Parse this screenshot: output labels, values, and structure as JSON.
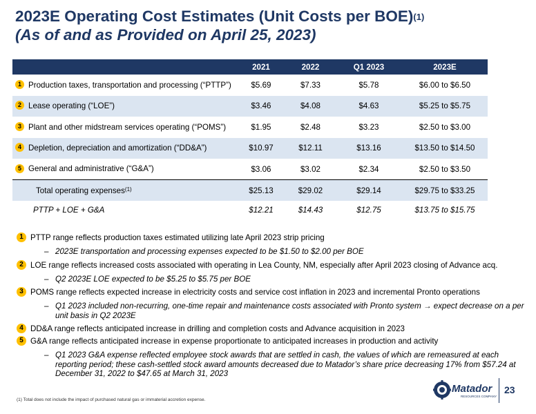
{
  "title": {
    "line1": "2023E Operating Cost Estimates (Unit Costs per BOE)",
    "line1_sup": "(1)",
    "line2": "(As of and as Provided on April 25, 2023)"
  },
  "table": {
    "headers": [
      "",
      "2021",
      "2022",
      "Q1 2023",
      "2023E"
    ],
    "rows": [
      {
        "num": "1",
        "label": "Production taxes, transportation and processing (“PTTP”)",
        "values": [
          "$5.69",
          "$7.33",
          "$5.78",
          "$6.00 to $6.50"
        ]
      },
      {
        "num": "2",
        "label": "Lease operating (“LOE”)",
        "values": [
          "$3.46",
          "$4.08",
          "$4.63",
          "$5.25 to $5.75"
        ]
      },
      {
        "num": "3",
        "label": "Plant and other midstream services operating (“POMS”)",
        "values": [
          "$1.95",
          "$2.48",
          "$3.23",
          "$2.50 to $3.00"
        ]
      },
      {
        "num": "4",
        "label": "Depletion, depreciation and amortization (“DD&A”)",
        "values": [
          "$10.97",
          "$12.11",
          "$13.16",
          "$13.50 to $14.50"
        ]
      },
      {
        "num": "5",
        "label": "General and administrative (“G&A”)",
        "values": [
          "$3.06",
          "$3.02",
          "$2.34",
          "$2.50 to $3.50"
        ]
      }
    ],
    "total": {
      "label": "Total operating expenses",
      "sup": "(1)",
      "values": [
        "$25.13",
        "$29.02",
        "$29.14",
        "$29.75 to $33.25"
      ]
    },
    "sub": {
      "label": "PTTP + LOE + G&A",
      "values": [
        "$12.21",
        "$14.43",
        "$12.75",
        "$13.75 to $15.75"
      ]
    }
  },
  "notes": {
    "n1": {
      "num": "1",
      "text": "PTTP range reflects production taxes estimated utilizing late April 2023 strip pricing"
    },
    "n1_sub": "2023E transportation and processing expenses expected to be $1.50 to $2.00 per BOE",
    "n2": {
      "num": "2",
      "text": "LOE range reflects increased costs associated with operating in Lea County, NM, especially after April 2023 closing of Advance acq."
    },
    "n2_sub": "Q2 2023E LOE expected to be $5.25 to $5.75 per BOE",
    "n3": {
      "num": "3",
      "text": "POMS range reflects expected increase in electricity costs and service cost inflation in 2023 and incremental Pronto operations"
    },
    "n3_sub": "Q1 2023 included non-recurring, one-time repair and maintenance costs associated with Pronto system → expect decrease on a per unit basis in Q2 2023E",
    "n4": {
      "num": "4",
      "text": "DD&A range reflects anticipated increase in drilling and completion costs and Advance acquisition in 2023"
    },
    "n5": {
      "num": "5",
      "text": "G&A range reflects anticipated increase in expense proportionate to anticipated increases in production and activity"
    },
    "n5_sub": "Q1 2023 G&A expense reflected employee stock awards that are settled in cash, the values of which are remeasured at each reporting period; these cash-settled stock award amounts decreased due to Matador’s share price decreasing 17% from $57.24 at December 31, 2022 to $47.65 at March 31, 2023",
    "dash": "–"
  },
  "footnote": "(1)   Total does not include the impact of purchased natural gas or immaterial accretion expense.",
  "logo": {
    "name": "Matador",
    "tagline": "RESOURCES COMPANY",
    "icon": "gear-emblem-icon"
  },
  "page_number": "23",
  "colors": {
    "navy": "#1f3864",
    "accent": "#ffc000",
    "shade": "#dbe5f1"
  }
}
